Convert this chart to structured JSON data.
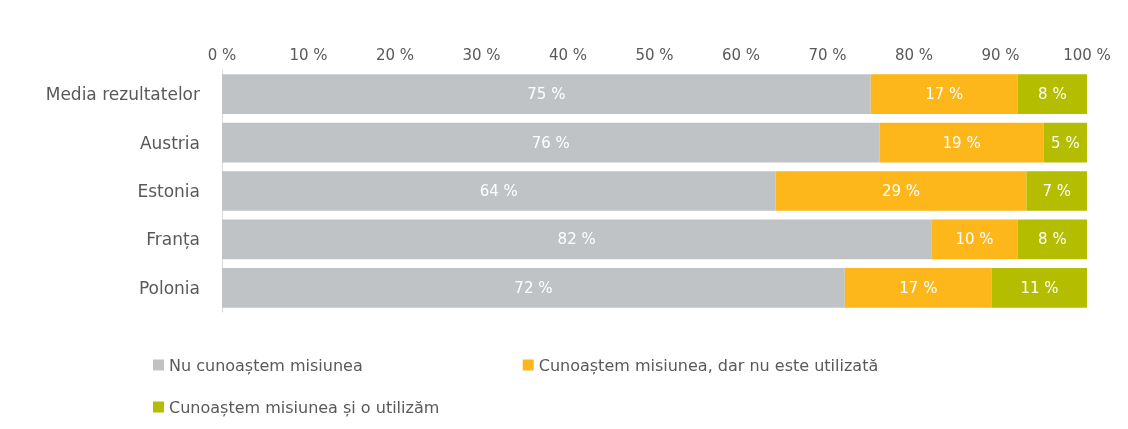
{
  "chart_data": {
    "type": "bar",
    "orientation": "horizontal",
    "stacked": true,
    "categories": [
      "Media rezultatelor",
      "Austria",
      "Estonia",
      "Franța",
      "Polonia"
    ],
    "series": [
      {
        "name": "Nu cunoaștem misiunea",
        "color": "#c0c3c6",
        "values": [
          75,
          76,
          64,
          82,
          72
        ],
        "value_labels": [
          "75 %",
          "76 %",
          "64 %",
          "82 %",
          "72 %"
        ]
      },
      {
        "name": "Cunoaștem misiunea, dar nu este utilizată",
        "color": "#fdb71a",
        "values": [
          17,
          19,
          29,
          10,
          17
        ],
        "value_labels": [
          "17 %",
          "19 %",
          "29 %",
          "10 %",
          "17 %"
        ]
      },
      {
        "name": "Cunoaștem misiunea și o utilizăm",
        "color": "#b5bd00",
        "values": [
          8,
          5,
          7,
          8,
          11
        ],
        "value_labels": [
          "8 %",
          "5 %",
          "7 %",
          "8 %",
          "11 %"
        ]
      }
    ],
    "xlim": [
      0,
      100
    ],
    "xticks": [
      {
        "value": 0,
        "label": "0 %"
      },
      {
        "value": 10,
        "label": "10 %"
      },
      {
        "value": 20,
        "label": "20 %"
      },
      {
        "value": 30,
        "label": "30 %"
      },
      {
        "value": 40,
        "label": "40 %"
      },
      {
        "value": 50,
        "label": "50 %"
      },
      {
        "value": 60,
        "label": "60 %"
      },
      {
        "value": 70,
        "label": "70 %"
      },
      {
        "value": 80,
        "label": "80 %"
      },
      {
        "value": 90,
        "label": "90 %"
      },
      {
        "value": 100,
        "label": "100 %"
      }
    ],
    "grid": false,
    "legend": "bottom"
  }
}
